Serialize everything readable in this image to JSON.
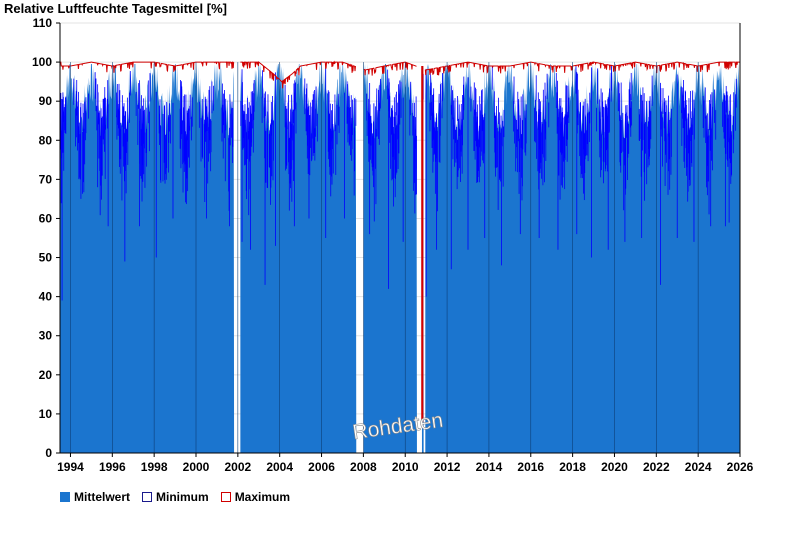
{
  "chart_data": {
    "type": "bar",
    "title": "Relative Luftfeuchte Tagesmittel [%]",
    "ylim": [
      0,
      110
    ],
    "xlim": [
      1993.5,
      2026.0
    ],
    "y_ticks": [
      0,
      10,
      20,
      30,
      40,
      50,
      60,
      70,
      80,
      90,
      100,
      110
    ],
    "x_ticks": [
      1994,
      1996,
      1998,
      2000,
      2002,
      2004,
      2006,
      2008,
      2010,
      2012,
      2014,
      2016,
      2018,
      2020,
      2022,
      2024,
      2026
    ],
    "grid": "horizontal",
    "watermark": "Rohdaten",
    "colors": {
      "mean": "#1b75cf",
      "min": "#0000ff",
      "max": "#d00000"
    },
    "series": [
      {
        "name": "Mittelwert"
      },
      {
        "name": "Minimum"
      },
      {
        "name": "Maximum"
      }
    ],
    "data_gaps": [
      [
        2001.8,
        2002.1
      ],
      [
        2007.65,
        2008.0
      ],
      [
        2010.55,
        2010.78
      ],
      [
        2010.86,
        2010.95
      ]
    ],
    "mean_max_points": [
      {
        "x": 1993.55,
        "max": 99
      },
      {
        "x": 1994.0,
        "max": 99
      },
      {
        "x": 1995.0,
        "max": 100
      },
      {
        "x": 1996.0,
        "max": 99
      },
      {
        "x": 1997.0,
        "max": 100
      },
      {
        "x": 1998.0,
        "max": 100
      },
      {
        "x": 1999.0,
        "max": 99
      },
      {
        "x": 2000.0,
        "max": 100
      },
      {
        "x": 2001.0,
        "max": 100
      },
      {
        "x": 2002.2,
        "max": 100
      },
      {
        "x": 2003.0,
        "max": 100
      },
      {
        "x": 2003.7,
        "max": 97
      },
      {
        "x": 2004.1,
        "max": 95
      },
      {
        "x": 2004.6,
        "max": 97
      },
      {
        "x": 2005.0,
        "max": 99
      },
      {
        "x": 2006.0,
        "max": 100
      },
      {
        "x": 2007.0,
        "max": 100
      },
      {
        "x": 2008.1,
        "max": 98
      },
      {
        "x": 2009.0,
        "max": 99
      },
      {
        "x": 2010.0,
        "max": 100
      },
      {
        "x": 2011.0,
        "max": 98
      },
      {
        "x": 2012.0,
        "max": 99
      },
      {
        "x": 2013.0,
        "max": 100
      },
      {
        "x": 2014.0,
        "max": 99
      },
      {
        "x": 2015.0,
        "max": 99
      },
      {
        "x": 2016.0,
        "max": 100
      },
      {
        "x": 2017.0,
        "max": 99
      },
      {
        "x": 2018.0,
        "max": 99
      },
      {
        "x": 2019.0,
        "max": 100
      },
      {
        "x": 2020.0,
        "max": 99
      },
      {
        "x": 2021.0,
        "max": 100
      },
      {
        "x": 2022.0,
        "max": 99
      },
      {
        "x": 2023.0,
        "max": 100
      },
      {
        "x": 2024.0,
        "max": 99
      },
      {
        "x": 2025.0,
        "max": 100
      },
      {
        "x": 2025.95,
        "max": 100
      }
    ],
    "minimum_dips": [
      {
        "x": 1993.6,
        "y": 39
      },
      {
        "x": 1994.5,
        "y": 65
      },
      {
        "x": 1995.3,
        "y": 68
      },
      {
        "x": 1995.8,
        "y": 58
      },
      {
        "x": 1996.6,
        "y": 49
      },
      {
        "x": 1997.3,
        "y": 58
      },
      {
        "x": 1998.1,
        "y": 50
      },
      {
        "x": 1998.9,
        "y": 60
      },
      {
        "x": 1999.6,
        "y": 67
      },
      {
        "x": 2000.5,
        "y": 60
      },
      {
        "x": 2001.6,
        "y": 58
      },
      {
        "x": 2002.2,
        "y": 54
      },
      {
        "x": 2002.6,
        "y": 52
      },
      {
        "x": 2003.3,
        "y": 43
      },
      {
        "x": 2003.8,
        "y": 53
      },
      {
        "x": 2004.7,
        "y": 58
      },
      {
        "x": 2005.4,
        "y": 60
      },
      {
        "x": 2006.2,
        "y": 55
      },
      {
        "x": 2007.1,
        "y": 60
      },
      {
        "x": 2008.3,
        "y": 56
      },
      {
        "x": 2009.2,
        "y": 42
      },
      {
        "x": 2009.9,
        "y": 54
      },
      {
        "x": 2011.0,
        "y": 40
      },
      {
        "x": 2011.5,
        "y": 52
      },
      {
        "x": 2012.2,
        "y": 47
      },
      {
        "x": 2013.0,
        "y": 52
      },
      {
        "x": 2013.8,
        "y": 55
      },
      {
        "x": 2014.6,
        "y": 48
      },
      {
        "x": 2015.5,
        "y": 56
      },
      {
        "x": 2016.4,
        "y": 55
      },
      {
        "x": 2017.3,
        "y": 52
      },
      {
        "x": 2018.2,
        "y": 56
      },
      {
        "x": 2018.9,
        "y": 50
      },
      {
        "x": 2019.7,
        "y": 52
      },
      {
        "x": 2020.5,
        "y": 54
      },
      {
        "x": 2021.3,
        "y": 55
      },
      {
        "x": 2022.2,
        "y": 43
      },
      {
        "x": 2023.0,
        "y": 55
      },
      {
        "x": 2023.8,
        "y": 54
      },
      {
        "x": 2024.6,
        "y": 58
      },
      {
        "x": 2025.3,
        "y": 58
      }
    ]
  }
}
